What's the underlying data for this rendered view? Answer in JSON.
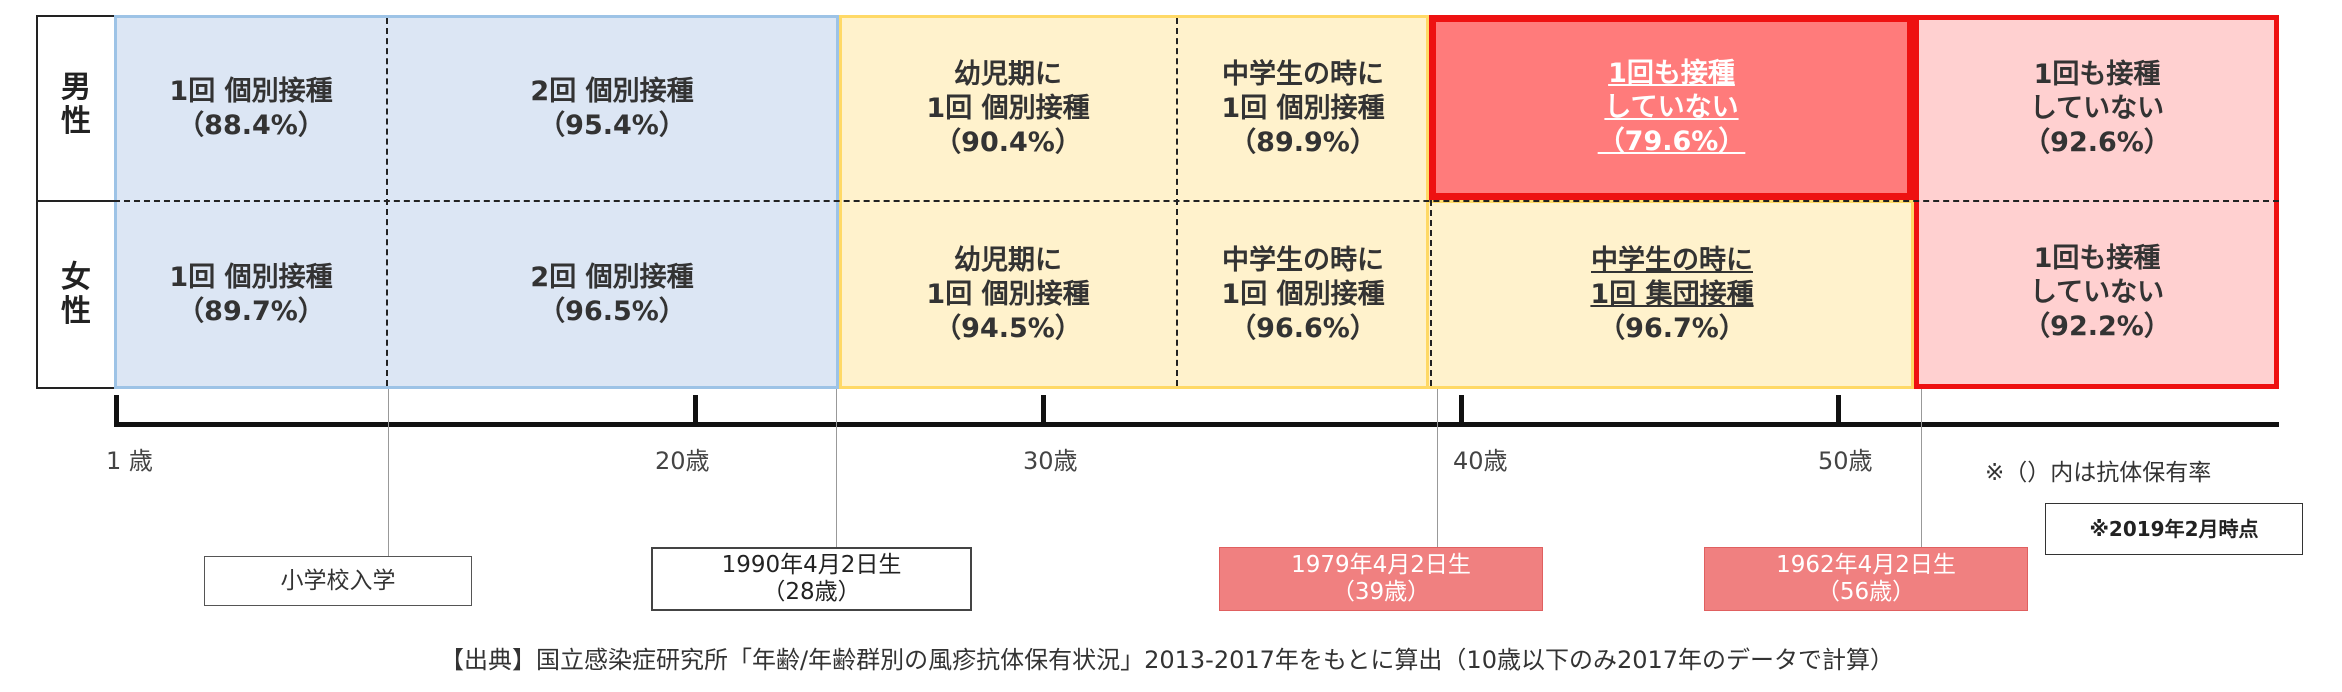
{
  "gender": {
    "male": "男\n性",
    "male_l1": "男",
    "male_l2": "性",
    "female_l1": "女",
    "female_l2": "性"
  },
  "male": {
    "c1": [
      "1回 個別接種",
      "（88.4%）"
    ],
    "c2": [
      "2回 個別接種",
      "（95.4%）"
    ],
    "c3": [
      "幼児期に",
      "1回 個別接種",
      "（90.4%）"
    ],
    "c4": [
      "中学生の時に",
      "1回 個別接種",
      "（89.9%）"
    ],
    "c5": [
      "1回も接種",
      "していない",
      "（79.6%）"
    ],
    "c6": [
      "1回も接種",
      "していない",
      "（92.6%）"
    ]
  },
  "female": {
    "c1": [
      "1回 個別接種",
      "（89.7%）"
    ],
    "c2": [
      "2回 個別接種",
      "（96.5%）"
    ],
    "c3": [
      "幼児期に",
      "1回 個別接種",
      "（94.5%）"
    ],
    "c4": [
      "中学生の時に",
      "1回 個別接種",
      "（96.6%）"
    ],
    "c5": [
      "中学生の時に",
      "1回 集団接種",
      "（96.7%）"
    ],
    "c6": [
      "1回も接種",
      "していない",
      "（92.2%）"
    ]
  },
  "axis": {
    "t1": "1 歳",
    "t20": "20歳",
    "t30": "30歳",
    "t40": "40歳",
    "t50": "50歳"
  },
  "notes": {
    "antibody": "※（）内は抗体保有率",
    "as_of": "※2019年2月時点"
  },
  "markers": {
    "elementary": "小学校入学",
    "b1990": [
      "1990年4月2日生",
      "（28歳）"
    ],
    "b1979": [
      "1979年4月2日生",
      "（39歳）"
    ],
    "b1962": [
      "1962年4月2日生",
      "（56歳）"
    ]
  },
  "source": "【出典】国立感染症研究所「年齢/年齢群別の風疹抗体保有状況」2013-2017年をもとに算出（10歳以下のみ2017年のデータで計算）",
  "colors": {
    "blue_fill": "#dce6f4",
    "blue_border": "#9dc3e6",
    "yellow_fill": "#fff2cc",
    "yellow_border": "#ffd966",
    "pink_fill": "#ffd0d0",
    "red": "#ee1111",
    "red_fill": "#ff7b7b",
    "box_red": "#f08080"
  }
}
